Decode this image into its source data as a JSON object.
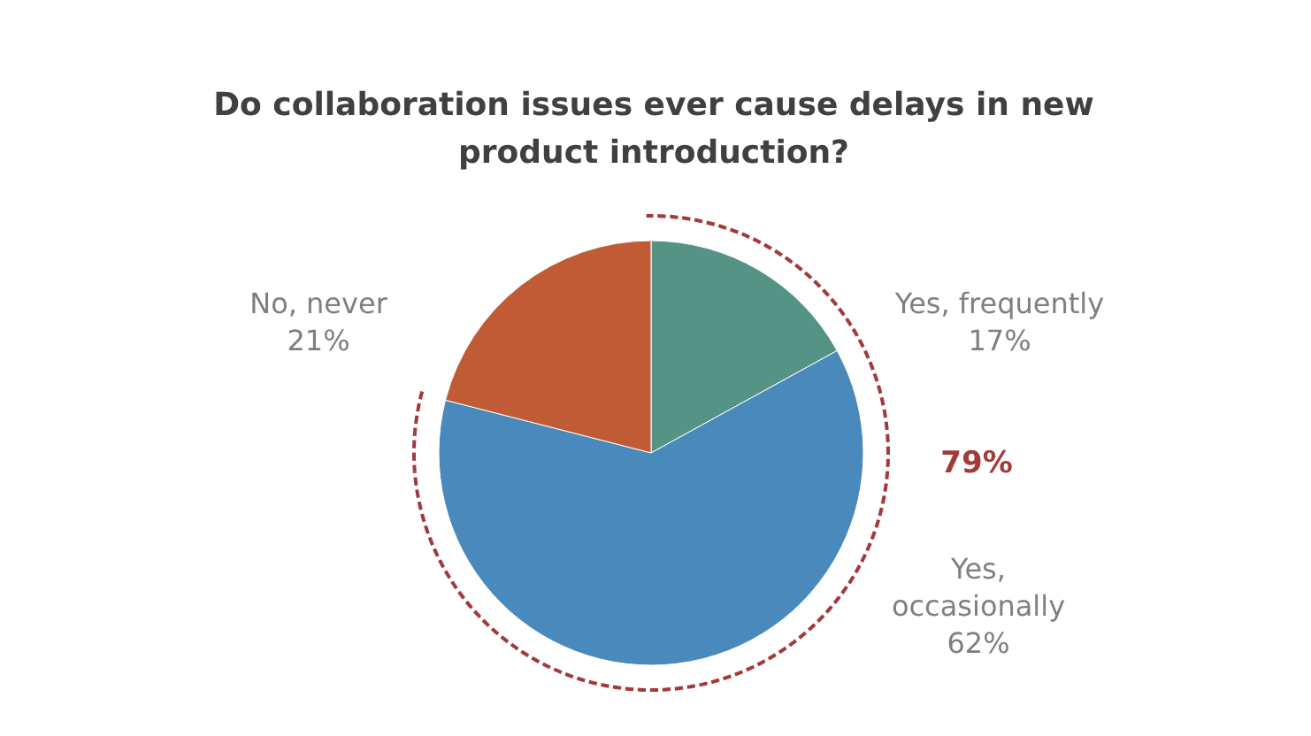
{
  "chart_data": {
    "type": "pie",
    "title": "Do collaboration issues ever cause delays in new product introduction?",
    "categories": [
      "Yes, frequently",
      "Yes, occasionally",
      "No, never"
    ],
    "values": [
      17,
      62,
      21
    ],
    "colors": [
      "#559485",
      "#4a89bc",
      "#c05b35"
    ],
    "value_labels": [
      "17%",
      "62%",
      "21%"
    ],
    "annotations": [
      "79%"
    ]
  }
}
